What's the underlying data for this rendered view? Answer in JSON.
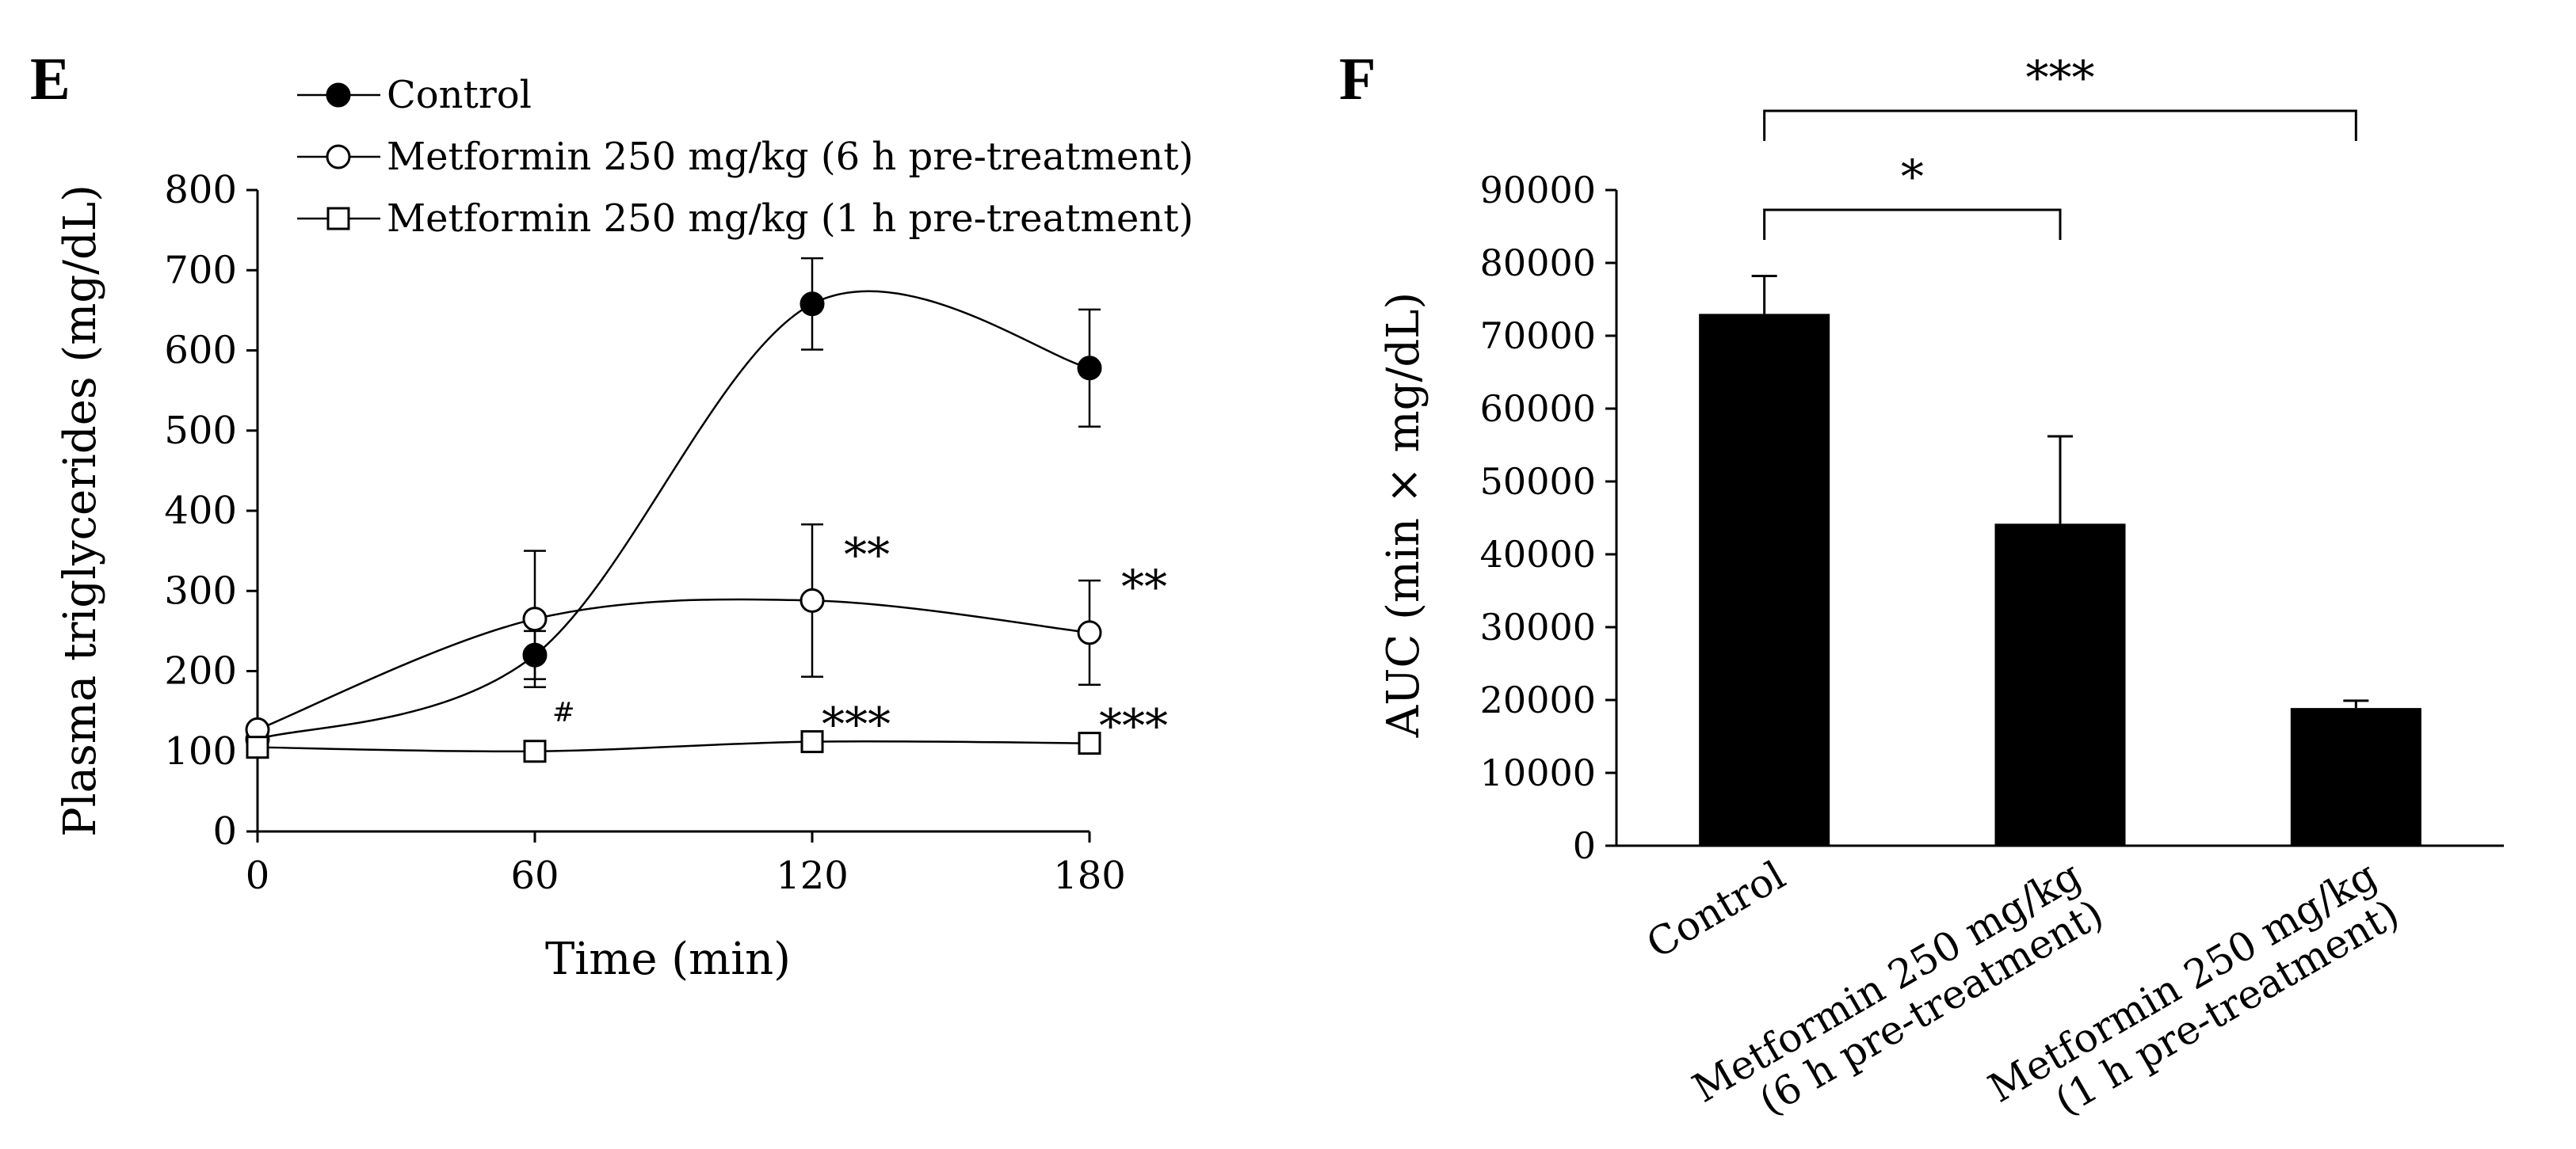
{
  "chart_data": [
    {
      "panel": "E",
      "type": "line",
      "xlabel": "Time (min)",
      "ylabel": "Plasma triglycerides (mg/dL)",
      "x": [
        0,
        60,
        120,
        180
      ],
      "xticks": [
        "0",
        "60",
        "120",
        "180"
      ],
      "yticks": [
        "0",
        "100",
        "200",
        "300",
        "400",
        "500",
        "600",
        "700",
        "800"
      ],
      "xlim": [
        0,
        180
      ],
      "ylim": [
        0,
        800
      ],
      "grid": false,
      "legend_position": "top",
      "series": [
        {
          "name": "Control",
          "marker": "filled-circle",
          "values": [
            115,
            220,
            658,
            578
          ],
          "errors": [
            null,
            30,
            57,
            73
          ],
          "annotations": [
            "",
            "",
            "",
            ""
          ]
        },
        {
          "name": "Metformin 250 mg/kg (6 h pre-treatment)",
          "marker": "open-circle",
          "values": [
            127,
            265,
            288,
            248
          ],
          "errors": [
            null,
            85,
            95,
            65
          ],
          "annotations": [
            "",
            "",
            "**",
            "**"
          ]
        },
        {
          "name": "Metformin 250 mg/kg (1 h pre-treatment)",
          "marker": "open-square",
          "values": [
            105,
            100,
            112,
            110
          ],
          "errors": [
            null,
            null,
            null,
            null
          ],
          "annotations": [
            "",
            "#",
            "***",
            "***"
          ]
        }
      ]
    },
    {
      "panel": "F",
      "type": "bar",
      "ylabel": "AUC (min × mg/dL)",
      "categories": [
        [
          "Control"
        ],
        [
          "Metformin 250 mg/kg",
          "(6 h pre-treatment)"
        ],
        [
          "Metformin 250 mg/kg",
          "(1 h pre-treatment)"
        ]
      ],
      "values": [
        73000,
        44200,
        18900
      ],
      "errors": [
        5200,
        12000,
        1000
      ],
      "yticks": [
        "0",
        "10000",
        "20000",
        "30000",
        "40000",
        "50000",
        "60000",
        "70000",
        "80000",
        "90000"
      ],
      "ylim": [
        0,
        90000
      ],
      "grid": false,
      "comparisons": [
        {
          "from": 0,
          "to": 1,
          "label": "*"
        },
        {
          "from": 0,
          "to": 2,
          "label": "***"
        }
      ]
    }
  ]
}
